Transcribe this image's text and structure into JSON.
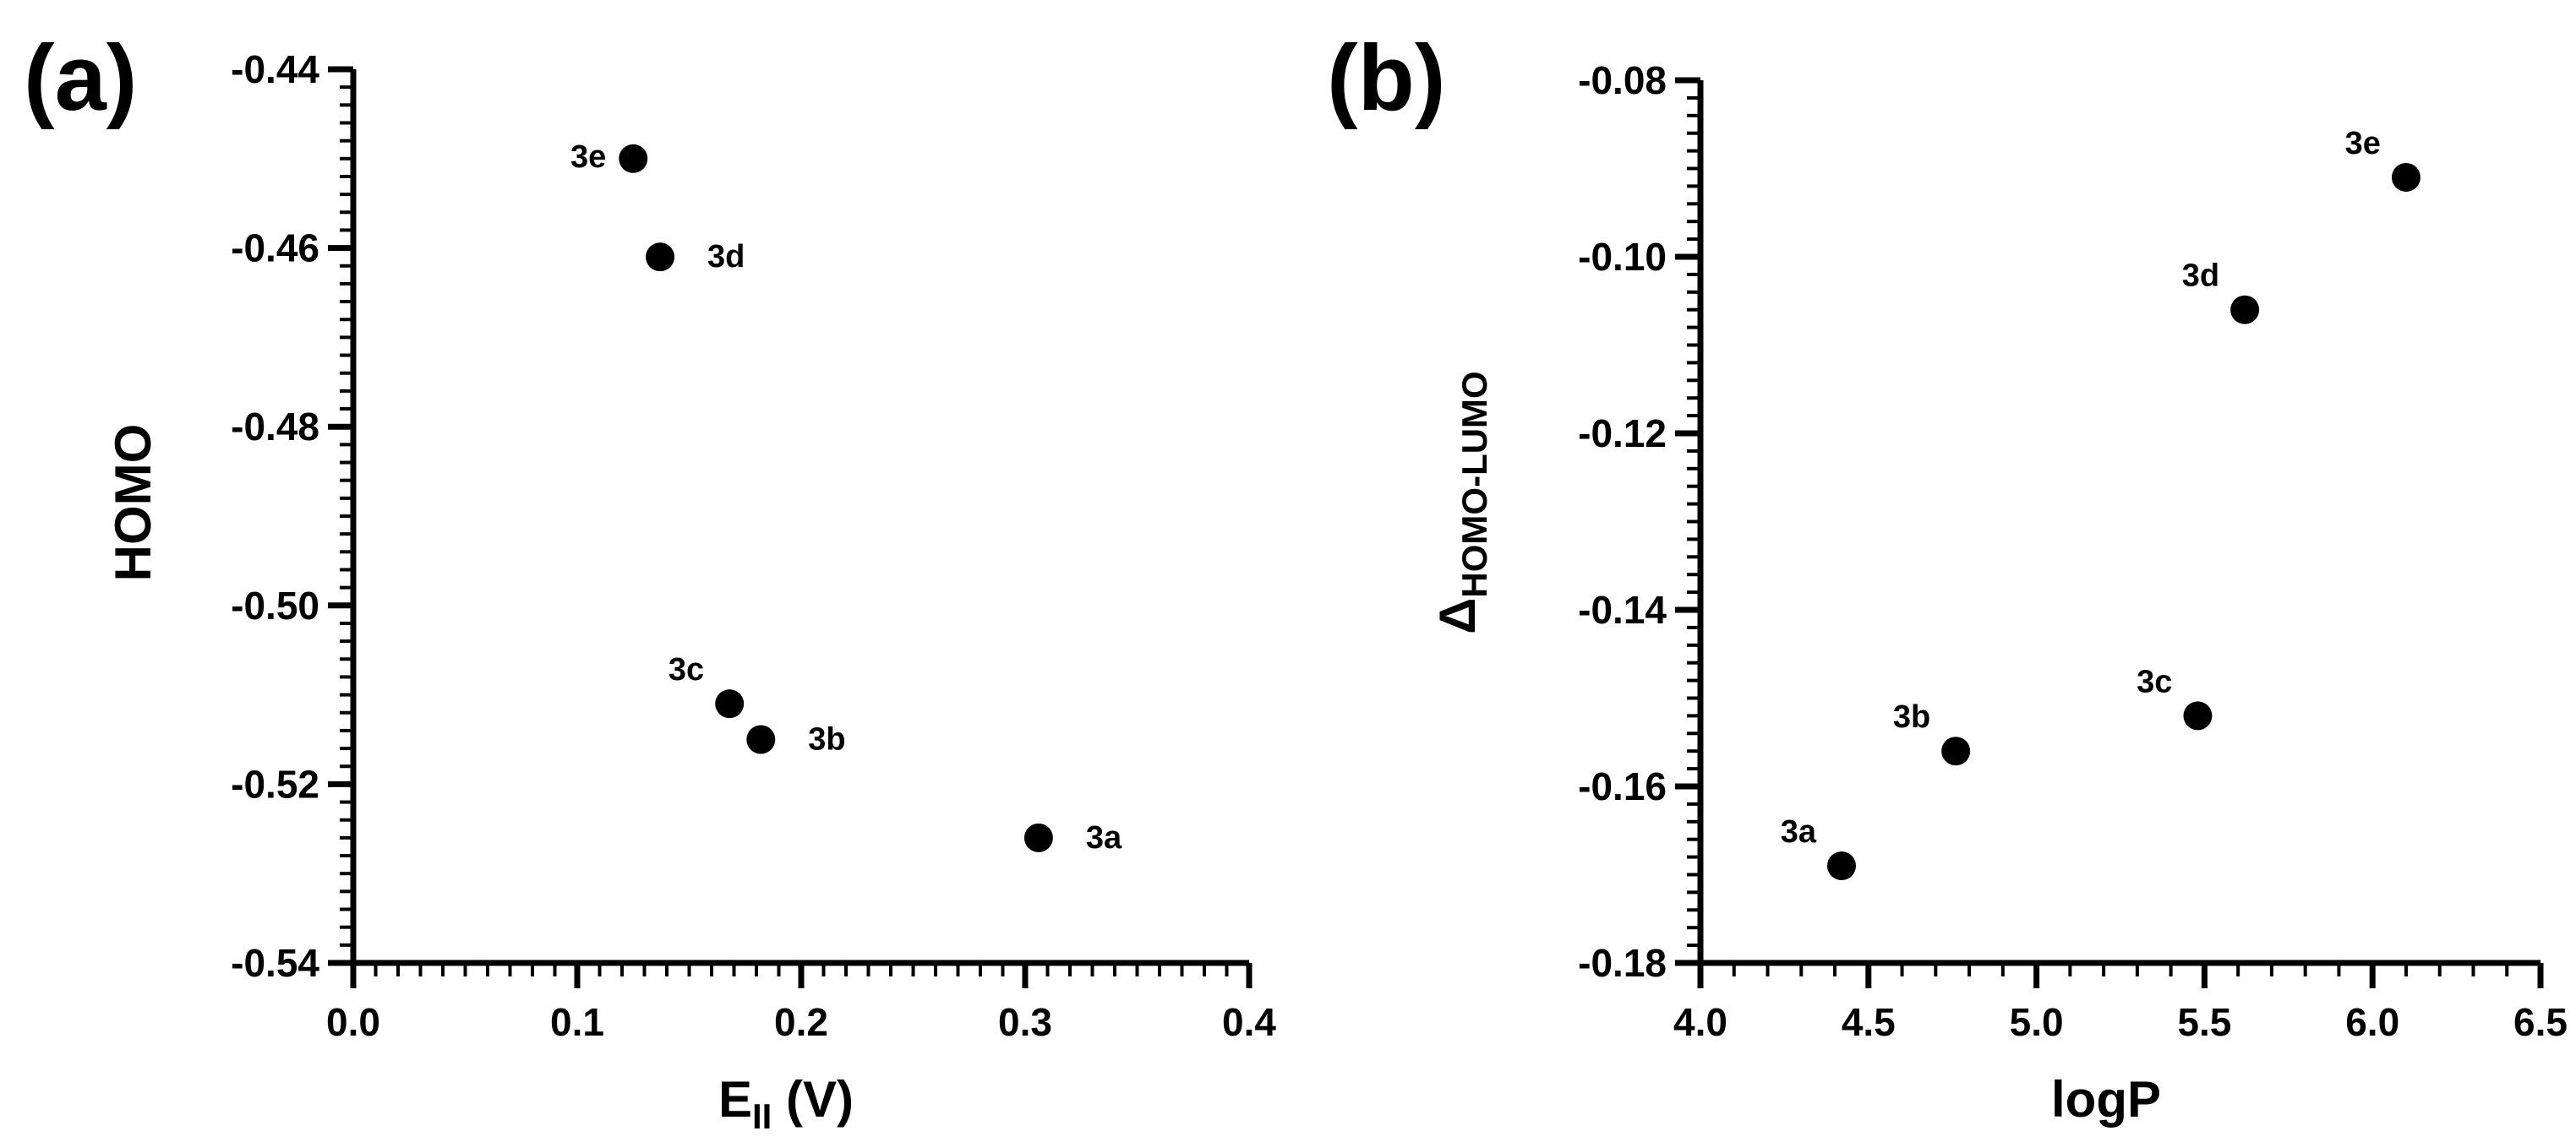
{
  "chart_data": [
    {
      "type": "scatter",
      "panel": "(a)",
      "xlabel_main": "E",
      "xlabel_sub": "II",
      "xlabel_suffix": " (V)",
      "ylabel": "HOMO",
      "xlim": [
        0.0,
        0.4
      ],
      "ylim": [
        -0.54,
        -0.44
      ],
      "xticks": [
        0.0,
        0.1,
        0.2,
        0.3,
        0.4
      ],
      "xtick_labels": [
        "0.0",
        "0.1",
        "0.2",
        "0.3",
        "0.4"
      ],
      "yticks": [
        -0.54,
        -0.52,
        -0.5,
        -0.48,
        -0.46,
        -0.44
      ],
      "ytick_labels": [
        "-0.54",
        "-0.52",
        "-0.50",
        "-0.48",
        "-0.46",
        "-0.44"
      ],
      "x_minor_step": 0.01,
      "y_minor_step": 0.002,
      "points": [
        {
          "label": "3a",
          "x": 0.306,
          "y": -0.526,
          "label_pos": "right"
        },
        {
          "label": "3b",
          "x": 0.182,
          "y": -0.515,
          "label_pos": "right"
        },
        {
          "label": "3c",
          "x": 0.168,
          "y": -0.511,
          "label_pos": "upper-left"
        },
        {
          "label": "3d",
          "x": 0.137,
          "y": -0.461,
          "label_pos": "right"
        },
        {
          "label": "3e",
          "x": 0.125,
          "y": -0.45,
          "label_pos": "left"
        }
      ]
    },
    {
      "type": "scatter",
      "panel": "(b)",
      "xlabel": "logP",
      "ylabel_main": "Δ",
      "ylabel_sub": "HOMO-LUMO",
      "xlim": [
        4.0,
        6.5
      ],
      "ylim": [
        -0.18,
        -0.08
      ],
      "xticks": [
        4.0,
        4.5,
        5.0,
        5.5,
        6.0,
        6.5
      ],
      "xtick_labels": [
        "4.0",
        "4.5",
        "5.0",
        "5.5",
        "6.0",
        "6.5"
      ],
      "yticks": [
        -0.18,
        -0.16,
        -0.14,
        -0.12,
        -0.1,
        -0.08
      ],
      "ytick_labels": [
        "-0.18",
        "-0.16",
        "-0.14",
        "-0.12",
        "-0.10",
        "-0.08"
      ],
      "x_minor_step": 0.1,
      "y_minor_step": 0.002,
      "points": [
        {
          "label": "3a",
          "x": 4.42,
          "y": -0.169,
          "label_pos": "upper-left"
        },
        {
          "label": "3b",
          "x": 4.76,
          "y": -0.156,
          "label_pos": "upper-left"
        },
        {
          "label": "3c",
          "x": 5.48,
          "y": -0.152,
          "label_pos": "upper-left"
        },
        {
          "label": "3d",
          "x": 5.62,
          "y": -0.106,
          "label_pos": "upper-left"
        },
        {
          "label": "3e",
          "x": 6.1,
          "y": -0.091,
          "label_pos": "upper-left"
        }
      ]
    }
  ]
}
